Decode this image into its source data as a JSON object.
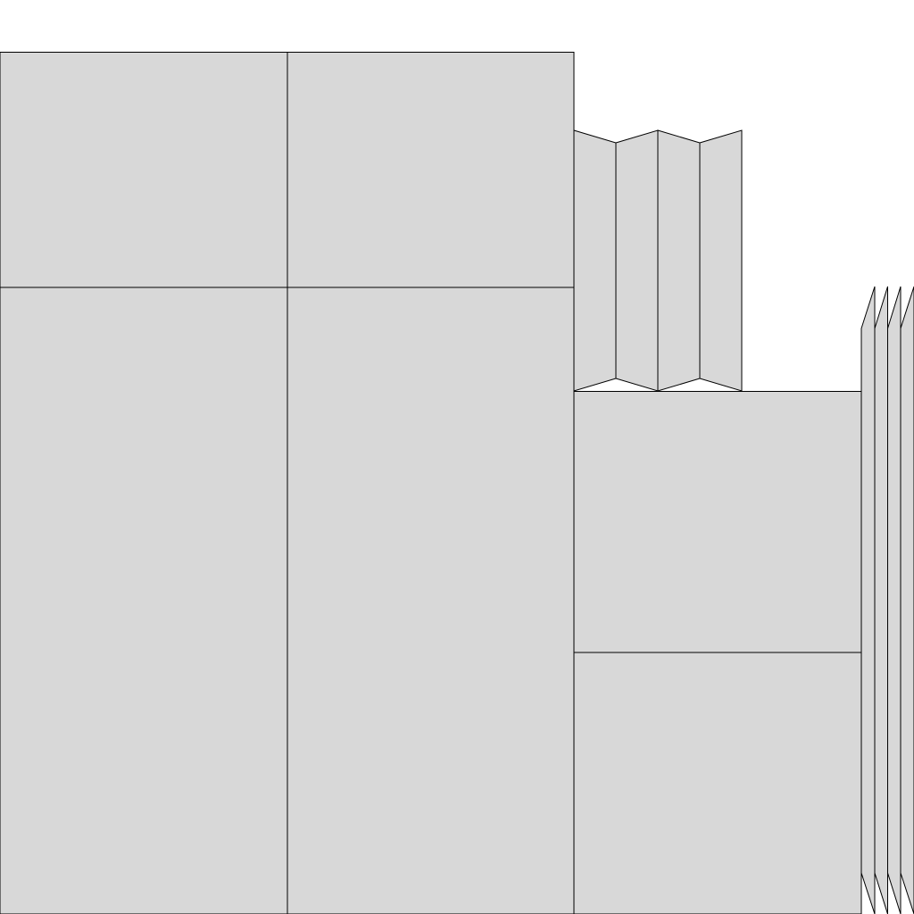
{
  "diagram": {
    "fill_color": "#d8d8d8",
    "stroke_color": "#000000",
    "background_color": "#ffffff"
  }
}
